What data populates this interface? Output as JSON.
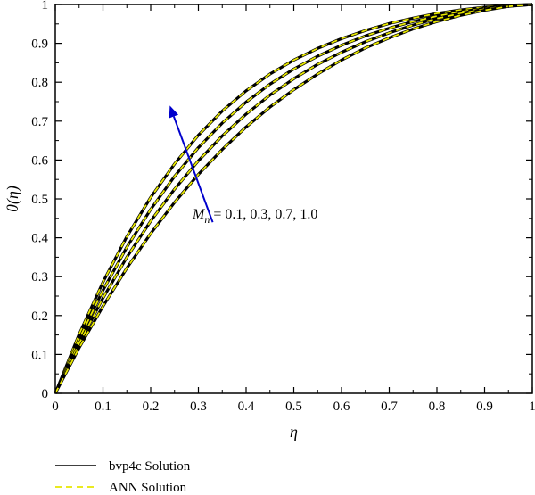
{
  "chart_data": {
    "type": "line",
    "xlabel": "η",
    "ylabel": "θ(η)",
    "xlim": [
      0,
      1
    ],
    "ylim": [
      0,
      1
    ],
    "xticks": [
      "0",
      "0.1",
      "0.2",
      "0.3",
      "0.4",
      "0.5",
      "0.6",
      "0.7",
      "0.8",
      "0.9",
      "1"
    ],
    "yticks": [
      "0",
      "0.1",
      "0.2",
      "0.3",
      "0.4",
      "0.5",
      "0.6",
      "0.7",
      "0.8",
      "0.9",
      "1"
    ],
    "grid": false,
    "legend": {
      "placement": "below-left",
      "entries": [
        {
          "label": "bvp4c Solution",
          "color": "#000000",
          "style": "solid"
        },
        {
          "label": "ANN Solution",
          "color": "#e8e800",
          "style": "dashed"
        }
      ]
    },
    "annotation": {
      "symbol": "M",
      "subscript": "n",
      "text": "= 0.1, 0.3, 0.7, 1.0",
      "arrow_color": "#0000cc",
      "arrow_from": [
        0.33,
        0.44
      ],
      "arrow_to": [
        0.24,
        0.74
      ]
    },
    "x": [
      0,
      0.05,
      0.1,
      0.15,
      0.2,
      0.25,
      0.3,
      0.35,
      0.4,
      0.45,
      0.5,
      0.55,
      0.6,
      0.65,
      0.7,
      0.75,
      0.8,
      0.85,
      0.9,
      0.95,
      1.0
    ],
    "series": [
      {
        "param": "0.1",
        "values": [
          0,
          0.152,
          0.286,
          0.403,
          0.504,
          0.59,
          0.664,
          0.726,
          0.778,
          0.821,
          0.857,
          0.887,
          0.912,
          0.933,
          0.951,
          0.965,
          0.977,
          0.986,
          0.993,
          0.998,
          1.0
        ]
      },
      {
        "param": "0.3",
        "values": [
          0,
          0.14,
          0.265,
          0.376,
          0.473,
          0.558,
          0.632,
          0.695,
          0.749,
          0.795,
          0.834,
          0.867,
          0.895,
          0.919,
          0.939,
          0.956,
          0.97,
          0.981,
          0.99,
          0.997,
          1.0
        ]
      },
      {
        "param": "0.7",
        "values": [
          0,
          0.128,
          0.245,
          0.35,
          0.443,
          0.525,
          0.598,
          0.662,
          0.718,
          0.767,
          0.809,
          0.846,
          0.877,
          0.904,
          0.927,
          0.947,
          0.964,
          0.977,
          0.988,
          0.996,
          1.0
        ]
      },
      {
        "param": "1.0",
        "values": [
          0,
          0.117,
          0.224,
          0.322,
          0.411,
          0.491,
          0.563,
          0.627,
          0.685,
          0.736,
          0.781,
          0.821,
          0.857,
          0.888,
          0.914,
          0.937,
          0.956,
          0.972,
          0.985,
          0.995,
          1.0
        ]
      }
    ]
  }
}
